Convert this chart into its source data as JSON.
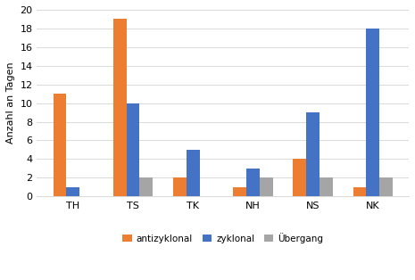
{
  "categories": [
    "TH",
    "TS",
    "TK",
    "NH",
    "NS",
    "NK"
  ],
  "antizyklonal": [
    11,
    19,
    2,
    1,
    4,
    1
  ],
  "zyklonal": [
    1,
    10,
    5,
    3,
    9,
    18
  ],
  "uebergang": [
    0,
    2,
    0,
    2,
    2,
    2
  ],
  "colors": {
    "antizyklonal": "#ED7D31",
    "zyklonal": "#4472C4",
    "uebergang": "#A5A5A5"
  },
  "legend_labels": [
    "antizyklonal",
    "zyklonal",
    "Übergang"
  ],
  "ylabel": "Anzahl an Tagen",
  "ylim": [
    0,
    20
  ],
  "yticks": [
    0,
    2,
    4,
    6,
    8,
    10,
    12,
    14,
    16,
    18,
    20
  ],
  "bar_width": 0.22,
  "grid_color": "#D9D9D9",
  "background_color": "#FFFFFF",
  "tick_fontsize": 8,
  "ylabel_fontsize": 8,
  "legend_fontsize": 7.5
}
